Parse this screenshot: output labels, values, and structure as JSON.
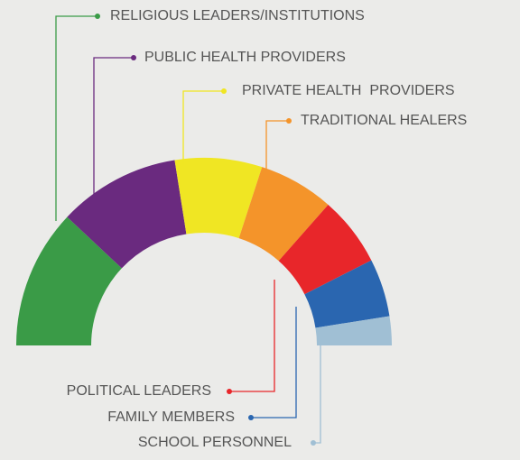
{
  "chart_data": {
    "type": "semi-donut",
    "categories": [
      "RELIGIOUS LEADERS/INSTITUTIONS",
      "PUBLIC HEALTH PROVIDERS",
      "PRIVATE HEALTH  PROVIDERS",
      "TRADITIONAL HEALERS",
      "POLITICAL LEADERS",
      "FAMILY MEMBERS",
      "SCHOOL PERSONNEL"
    ],
    "values": [
      24,
      21,
      15,
      13,
      12,
      10,
      5
    ],
    "colors": [
      "#3a9b47",
      "#6a2a7f",
      "#f0e623",
      "#f4942a",
      "#e8262a",
      "#2a66b0",
      "#a0bfd4"
    ]
  }
}
